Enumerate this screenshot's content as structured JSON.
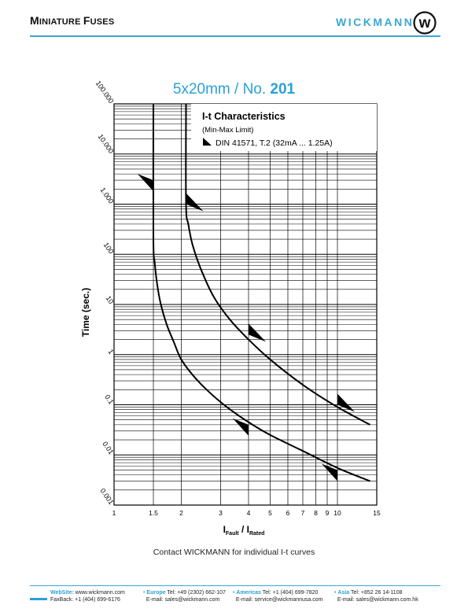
{
  "header": {
    "title_first": "M",
    "title_rest": "INIATURE ",
    "title_second": "F",
    "title_second_rest": "USES",
    "brand": "WICKMANN",
    "logo_letter": "w"
  },
  "title": {
    "prefix": "5x20mm / No. ",
    "number": "201"
  },
  "legend": {
    "title": "I-t Characteristics",
    "subtitle": "(Min-Max Limit)",
    "entry": "DIN 41571, T.2 (32mA ... 1.25A)"
  },
  "contact": "Contact WICKMANN for individual I-t curves",
  "footer": {
    "website_label": "WebSite:",
    "website": "www.wickmann.com",
    "fax_label": "FaxBack:",
    "fax": "+1 (404) 699-6176",
    "europe_label": "Europe",
    "europe_tel": "Tel: +49 (2302) 662-107",
    "europe_mail": "E-mail: sales@wickmann.com",
    "americas_label": "Americas",
    "americas_tel": "Tel: +1 (404) 699-7820",
    "americas_mail": "E-mail: service@wickmannusa.com",
    "asia_label": "Asia",
    "asia_tel": "Tel: +852 26 14-1108",
    "asia_mail": "E-mail: sales@wickmann.com.hk"
  },
  "chart_data": {
    "type": "line",
    "title": "5x20mm / No. 201",
    "xlabel": "I_Fault / I_Rated",
    "xlabel_main": "I",
    "xlabel_sub1": "Fault",
    "xlabel_sep": " / I",
    "xlabel_sub2": "Rated",
    "ylabel": "Time (sec.)",
    "x_scale": "log",
    "y_scale": "log",
    "xlim": [
      1,
      15
    ],
    "ylim": [
      0.001,
      100000
    ],
    "x_ticks": [
      1,
      1.5,
      2,
      3,
      4,
      5,
      6,
      7,
      8,
      9,
      10,
      15
    ],
    "x_tick_labels": [
      "1",
      "1.5",
      "2",
      "3",
      "4",
      "5",
      "6",
      "7",
      "8",
      "9",
      "10",
      "15"
    ],
    "y_ticks": [
      0.001,
      0.01,
      0.1,
      1,
      10,
      100,
      1000,
      10000,
      100000
    ],
    "y_tick_labels": [
      "0.001",
      "0.01",
      "0.1",
      "1",
      "10",
      "100",
      "1.000",
      "10.000",
      "100.000"
    ],
    "grid": true,
    "series": [
      {
        "role": "min",
        "x": [
          1.5,
          1.5,
          1.52,
          1.56,
          1.62,
          1.72,
          1.85,
          2.0,
          2.3,
          2.7,
          3.2,
          4.0,
          5.0,
          7.0,
          10.0,
          14.0
        ],
        "y": [
          100000,
          200,
          70,
          25,
          10,
          4,
          1.8,
          0.8,
          0.35,
          0.17,
          0.09,
          0.045,
          0.025,
          0.012,
          0.0055,
          0.003
        ]
      },
      {
        "role": "max",
        "x": [
          2.1,
          2.1,
          2.15,
          2.25,
          2.45,
          2.8,
          3.3,
          4.0,
          5.0,
          7.0,
          10.0,
          14.0
        ],
        "y": [
          100000,
          1000,
          400,
          150,
          50,
          14,
          5,
          2,
          0.8,
          0.25,
          0.09,
          0.04
        ]
      }
    ],
    "markers": [
      {
        "x": 1.5,
        "y": 3000,
        "side": "left"
      },
      {
        "x": 2.1,
        "y": 1000,
        "side": "right"
      },
      {
        "x": 4.0,
        "y": 2.5,
        "side": "right"
      },
      {
        "x": 10.0,
        "y": 0.1,
        "side": "right"
      },
      {
        "x": 4.0,
        "y": 0.04,
        "side": "left"
      },
      {
        "x": 10.0,
        "y": 0.005,
        "side": "left"
      }
    ],
    "colors": {
      "accent": "#2aa0d6",
      "line": "#000000"
    }
  }
}
